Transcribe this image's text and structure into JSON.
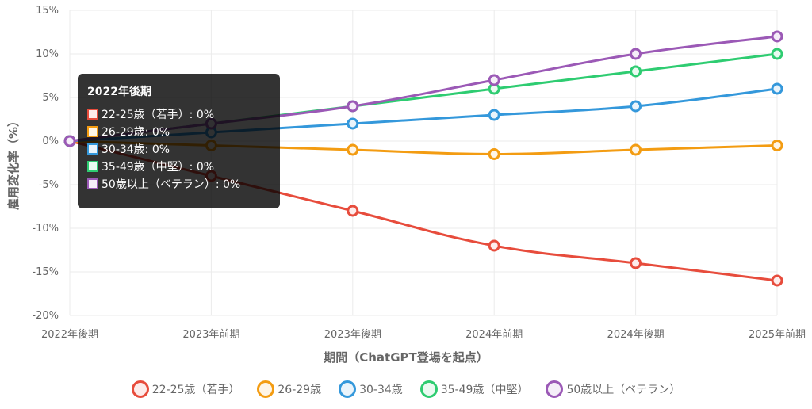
{
  "chart_data": {
    "type": "line",
    "title": "",
    "xlabel": "期間（ChatGPT登場を起点）",
    "ylabel": "雇用変化率（%）",
    "ylim": [
      -20,
      15
    ],
    "yticks": [
      15,
      10,
      5,
      0,
      -5,
      -10,
      -15,
      -20
    ],
    "ytick_labels": [
      "15%",
      "10%",
      "5%",
      "0%",
      "-5%",
      "-10%",
      "-15%",
      "-20%"
    ],
    "grid": true,
    "legend_position": "bottom",
    "categories": [
      "2022年後期",
      "2023年前期",
      "2023年後期",
      "2024年前期",
      "2024年後期",
      "2025年前期"
    ],
    "series": [
      {
        "name": "22-25歳（若手）",
        "color": "#e74c3c",
        "fill": "#fdeceb",
        "values": [
          0,
          -4,
          -8,
          -12,
          -14,
          -16
        ]
      },
      {
        "name": "26-29歳",
        "color": "#f39c12",
        "fill": "#fef5e7",
        "values": [
          0,
          -0.5,
          -1,
          -1.5,
          -1,
          -0.5
        ]
      },
      {
        "name": "30-34歳",
        "color": "#3498db",
        "fill": "#eaf4fb",
        "values": [
          0,
          1,
          2,
          3,
          4,
          6
        ]
      },
      {
        "name": "35-49歳（中堅）",
        "color": "#2ecc71",
        "fill": "#eafaf1",
        "values": [
          0,
          2,
          4,
          6,
          8,
          10
        ]
      },
      {
        "name": "50歳以上（ベテラン）",
        "color": "#9b59b6",
        "fill": "#f5eef8",
        "values": [
          0,
          2,
          4,
          7,
          10,
          12
        ]
      }
    ]
  },
  "tooltip": {
    "title": "2022年後期",
    "rows": [
      "22-25歳（若手）: 0%",
      "26-29歳: 0%",
      "30-34歳: 0%",
      "35-49歳（中堅）: 0%",
      "50歳以上（ベテラン）: 0%"
    ]
  }
}
